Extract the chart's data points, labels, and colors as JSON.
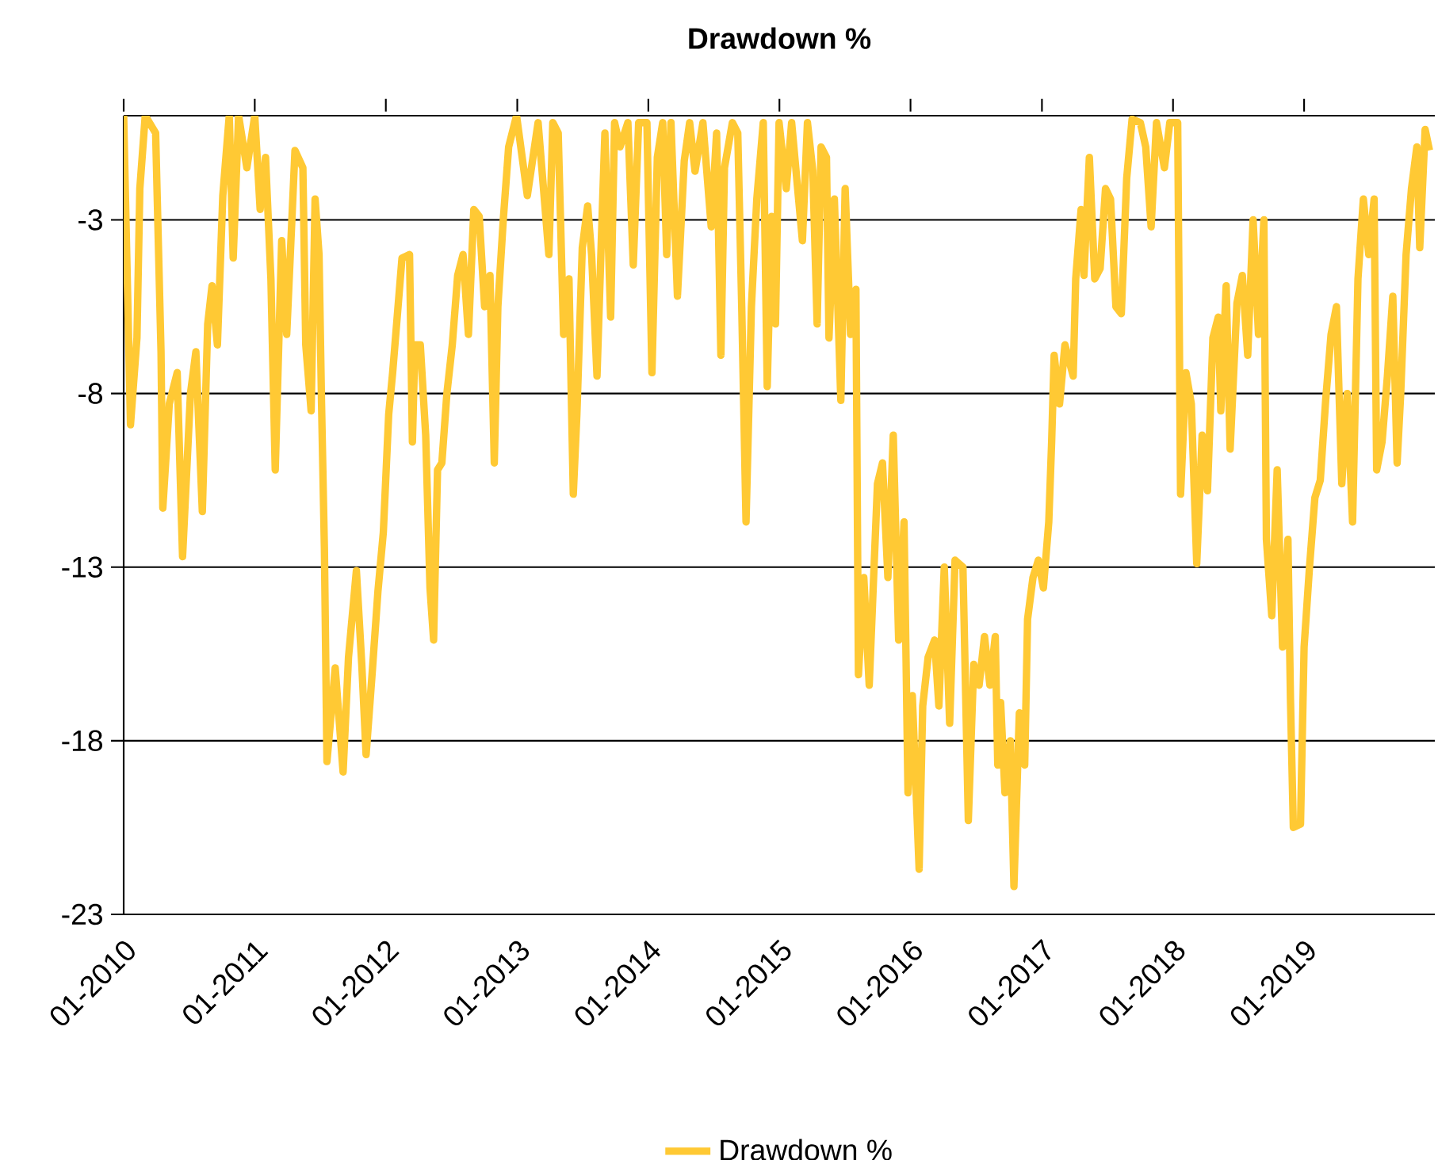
{
  "chart_data": {
    "type": "line",
    "title": "Drawdown %",
    "x": [
      "2010-01-01",
      "2010-01-20",
      "2010-02-07",
      "2010-02-15",
      "2010-03-02",
      "2010-03-31",
      "2010-04-15",
      "2010-04-20",
      "2010-05-08",
      "2010-05-30",
      "2010-06-14",
      "2010-07-06",
      "2010-07-21",
      "2010-08-08",
      "2010-08-23",
      "2010-09-04",
      "2010-09-19",
      "2010-10-04",
      "2010-10-22",
      "2010-11-02",
      "2010-11-17",
      "2010-12-10",
      "2011-01-01",
      "2011-01-16",
      "2011-01-31",
      "2011-02-15",
      "2011-02-27",
      "2011-03-17",
      "2011-03-31",
      "2011-04-23",
      "2011-05-15",
      "2011-05-23",
      "2011-06-07",
      "2011-06-18",
      "2011-06-29",
      "2011-07-06",
      "2011-07-14",
      "2011-07-21",
      "2011-08-13",
      "2011-09-04",
      "2011-09-19",
      "2011-10-11",
      "2011-10-26",
      "2011-11-07",
      "2011-11-25",
      "2011-12-10",
      "2011-12-25",
      "2012-01-09",
      "2012-01-20",
      "2012-02-15",
      "2012-03-07",
      "2012-03-15",
      "2012-03-22",
      "2012-04-06",
      "2012-04-21",
      "2012-05-03",
      "2012-05-13",
      "2012-05-24",
      "2012-06-05",
      "2012-06-19",
      "2012-07-04",
      "2012-07-19",
      "2012-08-03",
      "2012-08-18",
      "2012-09-02",
      "2012-09-17",
      "2012-10-02",
      "2012-10-17",
      "2012-10-29",
      "2012-11-08",
      "2012-11-23",
      "2012-12-08",
      "2012-12-30",
      "2013-01-29",
      "2013-02-28",
      "2013-03-30",
      "2013-04-10",
      "2013-04-25",
      "2013-05-10",
      "2013-05-25",
      "2013-06-06",
      "2013-06-16",
      "2013-07-01",
      "2013-07-16",
      "2013-07-27",
      "2013-08-11",
      "2013-08-23",
      "2013-09-02",
      "2013-09-18",
      "2013-09-29",
      "2013-10-14",
      "2013-11-05",
      "2013-11-20",
      "2013-12-05",
      "2013-12-28",
      "2014-01-11",
      "2014-01-26",
      "2014-02-10",
      "2014-02-21",
      "2014-03-05",
      "2014-03-23",
      "2014-04-11",
      "2014-04-26",
      "2014-05-11",
      "2014-06-02",
      "2014-06-25",
      "2014-07-10",
      "2014-07-22",
      "2014-08-01",
      "2014-08-23",
      "2014-09-07",
      "2014-09-18",
      "2014-09-30",
      "2014-10-15",
      "2014-10-30",
      "2014-11-17",
      "2014-11-28",
      "2014-12-10",
      "2014-12-21",
      "2014-12-31",
      "2015-01-20",
      "2015-02-04",
      "2015-03-06",
      "2015-03-20",
      "2015-04-04",
      "2015-04-16",
      "2015-04-27",
      "2015-05-12",
      "2015-05-19",
      "2015-06-03",
      "2015-06-21",
      "2015-07-03",
      "2015-07-18",
      "2015-08-02",
      "2015-08-09",
      "2015-08-24",
      "2015-09-08",
      "2015-10-01",
      "2015-10-15",
      "2015-10-30",
      "2015-11-14",
      "2015-11-29",
      "2015-12-14",
      "2015-12-25",
      "2016-01-06",
      "2016-01-25",
      "2016-02-04",
      "2016-02-19",
      "2016-03-08",
      "2016-03-20",
      "2016-04-04",
      "2016-04-19",
      "2016-05-04",
      "2016-05-26",
      "2016-06-10",
      "2016-06-25",
      "2016-07-10",
      "2016-07-25",
      "2016-08-09",
      "2016-08-24",
      "2016-08-31",
      "2016-09-08",
      "2016-09-20",
      "2016-10-05",
      "2016-10-15",
      "2016-10-30",
      "2016-11-14",
      "2016-11-22",
      "2016-12-07",
      "2016-12-22",
      "2017-01-05",
      "2017-01-20",
      "2017-01-28",
      "2017-02-04",
      "2017-02-19",
      "2017-03-06",
      "2017-03-29",
      "2017-04-05",
      "2017-04-20",
      "2017-04-28",
      "2017-05-13",
      "2017-05-28",
      "2017-06-12",
      "2017-06-27",
      "2017-07-11",
      "2017-07-26",
      "2017-08-10",
      "2017-08-25",
      "2017-09-09",
      "2017-10-02",
      "2017-10-17",
      "2017-11-01",
      "2017-11-16",
      "2017-12-08",
      "2017-12-23",
      "2018-01-14",
      "2018-01-22",
      "2018-02-06",
      "2018-02-21",
      "2018-03-08",
      "2018-03-23",
      "2018-04-07",
      "2018-04-22",
      "2018-05-07",
      "2018-05-14",
      "2018-05-29",
      "2018-06-09",
      "2018-06-28",
      "2018-07-13",
      "2018-07-28",
      "2018-08-12",
      "2018-08-27",
      "2018-09-11",
      "2018-09-18",
      "2018-10-03",
      "2018-10-18",
      "2018-11-02",
      "2018-11-17",
      "2018-11-24",
      "2018-12-02",
      "2018-12-22",
      "2019-01-01",
      "2019-01-16",
      "2019-01-31",
      "2019-02-15",
      "2019-03-02",
      "2019-03-17",
      "2019-04-01",
      "2019-04-16",
      "2019-05-01",
      "2019-05-16",
      "2019-05-31",
      "2019-06-15",
      "2019-06-30",
      "2019-07-15",
      "2019-07-22",
      "2019-08-06",
      "2019-08-21",
      "2019-09-05",
      "2019-09-17",
      "2019-09-27",
      "2019-10-12",
      "2019-10-27",
      "2019-11-11",
      "2019-11-19",
      "2019-12-04",
      "2019-12-16"
    ],
    "series": [
      {
        "name": "Drawdown %",
        "color": "#ffc934",
        "values": [
          0,
          -8.9,
          -6.4,
          -2.1,
          0,
          -0.5,
          -6.8,
          -11.3,
          -8.3,
          -7.4,
          -12.7,
          -8,
          -6.8,
          -11.4,
          -6,
          -4.9,
          -6.6,
          -2.3,
          0,
          -4.1,
          0,
          -1.5,
          0,
          -2.7,
          -1.2,
          -4.7,
          -10.2,
          -3.6,
          -6.3,
          -1,
          -1.5,
          -6.6,
          -8.5,
          -2.4,
          -4,
          -8.3,
          -12.5,
          -18.6,
          -15.9,
          -18.9,
          -15.6,
          -13.1,
          -15.8,
          -18.4,
          -15.9,
          -13.7,
          -12,
          -8.6,
          -7.4,
          -4.1,
          -4,
          -9.4,
          -6.6,
          -6.6,
          -9.2,
          -13.6,
          -15.1,
          -10.2,
          -10,
          -8,
          -6.6,
          -4.6,
          -4,
          -6.3,
          -2.7,
          -2.9,
          -5.5,
          -4.6,
          -10,
          -5.5,
          -3,
          -0.9,
          0,
          -2.3,
          -0.2,
          -4,
          -0.2,
          -0.5,
          -6.3,
          -4.7,
          -10.9,
          -8.6,
          -3.8,
          -2.6,
          -4,
          -7.5,
          -3.6,
          -0.5,
          -5.8,
          -0.2,
          -0.9,
          -0.2,
          -4.3,
          -0.2,
          -0.2,
          -7.4,
          -1.2,
          -0.2,
          -4,
          -0.2,
          -5.2,
          -1.3,
          -0.2,
          -1.6,
          -0.2,
          -3.2,
          -0.5,
          -6.9,
          -1.5,
          -0.2,
          -0.5,
          -5.5,
          -11.7,
          -5.5,
          -2.4,
          -0.2,
          -7.8,
          -2.9,
          -6,
          -0.2,
          -2.1,
          -0.2,
          -3.6,
          -0.2,
          -1.6,
          -6,
          -0.9,
          -1.2,
          -6.4,
          -2.4,
          -8.2,
          -2.1,
          -6.3,
          -5,
          -16.1,
          -13.3,
          -16.4,
          -10.6,
          -10,
          -13.3,
          -9.2,
          -15.1,
          -11.7,
          -19.5,
          -16.7,
          -21.7,
          -17,
          -15.6,
          -15.1,
          -17,
          -13,
          -17.5,
          -12.8,
          -13,
          -20.3,
          -15.8,
          -16.4,
          -15,
          -16.4,
          -15,
          -18.7,
          -16.9,
          -19.5,
          -18,
          -22.2,
          -17.2,
          -18.7,
          -14.5,
          -13.3,
          -12.8,
          -13.6,
          -11.7,
          -9.4,
          -6.9,
          -8.3,
          -6.6,
          -7.5,
          -4.7,
          -2.7,
          -4.6,
          -1.2,
          -4.7,
          -4.4,
          -2.1,
          -2.4,
          -5.5,
          -5.7,
          -1.8,
          -0.1,
          -0.2,
          -0.9,
          -3.2,
          -0.2,
          -1.5,
          -0.2,
          -0.2,
          -10.9,
          -7.4,
          -8.3,
          -12.9,
          -9.2,
          -10.8,
          -6.4,
          -5.8,
          -8.5,
          -4.9,
          -9.6,
          -5.4,
          -4.6,
          -6.9,
          -3,
          -6.3,
          -3,
          -12.2,
          -14.4,
          -10.2,
          -15.3,
          -12.2,
          -16.8,
          -20.5,
          -20.4,
          -15.3,
          -13,
          -11,
          -10.5,
          -8.2,
          -6.3,
          -5.5,
          -10.6,
          -8,
          -11.7,
          -4.7,
          -2.4,
          -4,
          -2.4,
          -10.2,
          -9.4,
          -7.5,
          -5.2,
          -10,
          -8,
          -4,
          -2.1,
          -0.9,
          -3.8,
          -0.4,
          -1
        ]
      }
    ],
    "xlim": [
      "2010-01-01",
      "2019-12-31"
    ],
    "xticks": [
      {
        "value": "2010-01",
        "label": "01-2010"
      },
      {
        "value": "2011-01",
        "label": "01-2011"
      },
      {
        "value": "2012-01",
        "label": "01-2012"
      },
      {
        "value": "2013-01",
        "label": "01-2013"
      },
      {
        "value": "2014-01",
        "label": "01-2014"
      },
      {
        "value": "2015-01",
        "label": "01-2015"
      },
      {
        "value": "2016-01",
        "label": "01-2016"
      },
      {
        "value": "2017-01",
        "label": "01-2017"
      },
      {
        "value": "2018-01",
        "label": "01-2018"
      },
      {
        "value": "2019-01",
        "label": "01-2019"
      }
    ],
    "ylim": [
      -23,
      0
    ],
    "yticks": [
      -3,
      -8,
      -13,
      -18,
      -23
    ],
    "grid": "y",
    "legend": "bottom"
  }
}
